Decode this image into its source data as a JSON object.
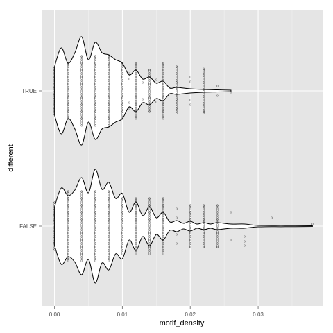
{
  "chart_data": {
    "type": "violin",
    "xlabel": "motif_density",
    "ylabel": "different",
    "x_ticks": [
      "0.00",
      "0.01",
      "0.02",
      "0.03"
    ],
    "x_tick_values": [
      0.0,
      0.01,
      0.02,
      0.03
    ],
    "xlim": [
      -0.0019,
      0.0395
    ],
    "categories": [
      "TRUE",
      "FALSE"
    ],
    "grid": true,
    "panel_background": "#e5e5e5",
    "grid_color": "#ffffff",
    "violins": [
      {
        "category": "TRUE",
        "range": [
          0.0,
          0.026
        ],
        "profile": [
          [
            0.0,
            0.35
          ],
          [
            0.001,
            0.62
          ],
          [
            0.002,
            0.4
          ],
          [
            0.003,
            0.55
          ],
          [
            0.004,
            0.78
          ],
          [
            0.005,
            0.45
          ],
          [
            0.006,
            0.7
          ],
          [
            0.007,
            0.55
          ],
          [
            0.008,
            0.52
          ],
          [
            0.009,
            0.45
          ],
          [
            0.01,
            0.4
          ],
          [
            0.011,
            0.23
          ],
          [
            0.012,
            0.3
          ],
          [
            0.013,
            0.17
          ],
          [
            0.014,
            0.2
          ],
          [
            0.015,
            0.11
          ],
          [
            0.016,
            0.14
          ],
          [
            0.017,
            0.04
          ],
          [
            0.018,
            0.05
          ],
          [
            0.02,
            0.03
          ],
          [
            0.022,
            0.02
          ],
          [
            0.024,
            0.015
          ],
          [
            0.026,
            0.01
          ]
        ],
        "points": [
          [
            0.0,
            [
              0.11,
              -0.11,
              0.2,
              -0.2,
              0.25,
              -0.25,
              0.3,
              -0.3,
              0.34,
              -0.34,
              0.05,
              -0.05
            ]
          ],
          [
            0.002,
            [
              0.1,
              -0.1,
              0.2,
              -0.2,
              0.3,
              -0.3,
              0.4,
              -0.4
            ]
          ],
          [
            0.004,
            [
              0.1,
              -0.1,
              0.2,
              -0.2,
              0.3,
              -0.3,
              0.4,
              -0.4,
              0.5,
              -0.5
            ]
          ],
          [
            0.006,
            [
              0.1,
              -0.1,
              0.2,
              -0.2,
              0.3,
              -0.3,
              0.4,
              -0.4,
              0.5,
              -0.5
            ]
          ],
          [
            0.008,
            [
              0.1,
              -0.1,
              0.2,
              -0.2,
              0.3,
              -0.3,
              0.4,
              -0.4,
              0.5,
              -0.5
            ]
          ],
          [
            0.01,
            [
              0.1,
              -0.1,
              0.2,
              -0.2,
              0.3,
              -0.3,
              0.4,
              -0.4
            ]
          ],
          [
            0.011,
            [
              0.17,
              -0.17,
              0.25,
              -0.25
            ]
          ],
          [
            0.012,
            [
              0.1,
              -0.1,
              0.2,
              -0.2,
              0.3,
              -0.3,
              0.4,
              -0.4
            ]
          ],
          [
            0.013,
            [
              0.12,
              -0.12
            ]
          ],
          [
            0.014,
            [
              0.1,
              -0.1,
              0.2,
              -0.2,
              0.3,
              -0.3
            ]
          ],
          [
            0.015,
            [
              0.16,
              -0.16
            ]
          ],
          [
            0.016,
            [
              0.1,
              -0.1,
              0.2,
              -0.2,
              0.3,
              -0.3,
              0.4,
              -0.4
            ]
          ],
          [
            0.018,
            [
              0.12,
              -0.12,
              0.25,
              -0.35
            ]
          ],
          [
            0.02,
            [
              0.13,
              -0.13,
              0.2,
              -0.2
            ]
          ],
          [
            0.022,
            [
              0.3,
              -0.3,
              0.32
            ]
          ],
          [
            0.024,
            [
              0.07,
              -0.07
            ]
          ],
          [
            0.026,
            [
              0.02
            ]
          ]
        ]
      },
      {
        "category": "FALSE",
        "range": [
          0.0,
          0.038
        ],
        "profile": [
          [
            0.0,
            0.28
          ],
          [
            0.001,
            0.55
          ],
          [
            0.002,
            0.44
          ],
          [
            0.003,
            0.52
          ],
          [
            0.004,
            0.7
          ],
          [
            0.005,
            0.48
          ],
          [
            0.006,
            0.82
          ],
          [
            0.007,
            0.53
          ],
          [
            0.008,
            0.63
          ],
          [
            0.009,
            0.4
          ],
          [
            0.01,
            0.47
          ],
          [
            0.011,
            0.2
          ],
          [
            0.012,
            0.35
          ],
          [
            0.013,
            0.15
          ],
          [
            0.014,
            0.28
          ],
          [
            0.015,
            0.12
          ],
          [
            0.016,
            0.2
          ],
          [
            0.017,
            0.06
          ],
          [
            0.018,
            0.08
          ],
          [
            0.019,
            0.04
          ],
          [
            0.02,
            0.07
          ],
          [
            0.021,
            0.03
          ],
          [
            0.022,
            0.05
          ],
          [
            0.023,
            0.03
          ],
          [
            0.024,
            0.05
          ],
          [
            0.026,
            0.03
          ],
          [
            0.028,
            0.03
          ],
          [
            0.03,
            0.01
          ],
          [
            0.034,
            0.008
          ],
          [
            0.038,
            0.005
          ]
        ],
        "points": [
          [
            0.0,
            [
              0.08,
              -0.08,
              0.16,
              -0.16,
              0.24,
              -0.24,
              0.34,
              -0.34
            ]
          ],
          [
            0.002,
            [
              0.1,
              -0.1,
              0.2,
              -0.2,
              0.3,
              -0.3,
              0.4,
              -0.4,
              0.5,
              -0.5
            ]
          ],
          [
            0.004,
            [
              0.1,
              -0.1,
              0.2,
              -0.2,
              0.3,
              -0.3,
              0.4,
              -0.4,
              0.5,
              -0.5
            ]
          ],
          [
            0.006,
            [
              0.1,
              -0.1,
              0.2,
              -0.2,
              0.3,
              -0.3,
              0.4,
              -0.4,
              0.5,
              -0.5
            ]
          ],
          [
            0.008,
            [
              0.1,
              -0.1,
              0.2,
              -0.2,
              0.3,
              -0.3,
              0.4,
              -0.4,
              0.5,
              -0.5
            ]
          ],
          [
            0.01,
            [
              0.1,
              -0.1,
              0.2,
              -0.2,
              0.3,
              -0.3,
              0.4,
              -0.4
            ]
          ],
          [
            0.012,
            [
              0.1,
              -0.1,
              0.2,
              -0.2,
              0.3,
              -0.3,
              0.4,
              -0.4
            ]
          ],
          [
            0.014,
            [
              0.1,
              -0.1,
              0.2,
              -0.2,
              0.3,
              -0.3,
              0.4,
              -0.4
            ]
          ],
          [
            0.016,
            [
              0.1,
              -0.1,
              0.2,
              -0.2,
              0.3,
              -0.3,
              0.4,
              -0.4
            ]
          ],
          [
            0.018,
            [
              0.12,
              -0.12,
              0.25,
              -0.25
            ]
          ],
          [
            0.02,
            [
              0.1,
              -0.1,
              0.2,
              -0.2,
              0.3,
              -0.3
            ]
          ],
          [
            0.022,
            [
              0.1,
              -0.1,
              0.3,
              -0.3
            ]
          ],
          [
            0.024,
            [
              0.1,
              -0.1,
              0.3,
              -0.3
            ]
          ],
          [
            0.026,
            [
              0.2,
              -0.2
            ]
          ],
          [
            0.028,
            [
              0.28,
              0.22,
              0.15
            ]
          ],
          [
            0.032,
            [
              -0.12
            ]
          ],
          [
            0.038,
            [
              -0.03
            ]
          ]
        ]
      }
    ]
  }
}
